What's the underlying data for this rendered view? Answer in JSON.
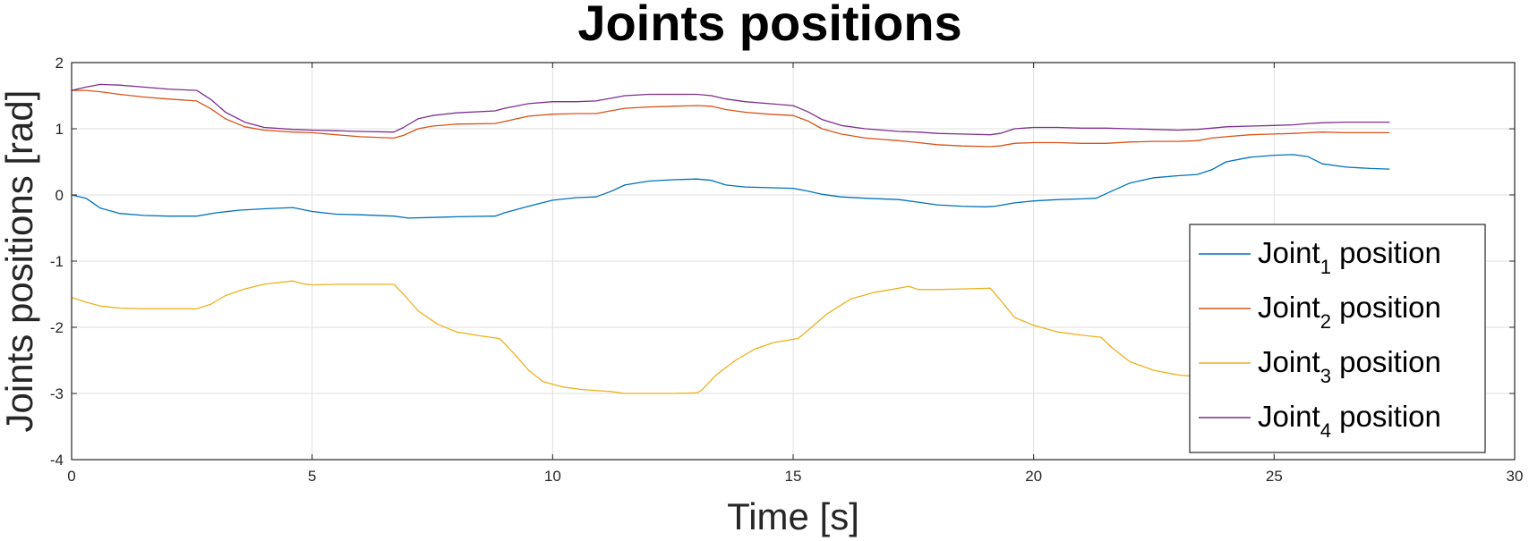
{
  "chart_data": {
    "type": "line",
    "title": "Joints positions",
    "xlabel": "Time [s]",
    "ylabel": "Joints positions [rad]",
    "xlim": [
      0,
      30
    ],
    "ylim": [
      -4,
      2
    ],
    "xticks": [
      0,
      5,
      10,
      15,
      20,
      25,
      30
    ],
    "yticks": [
      -4,
      -3,
      -2,
      -1,
      0,
      1,
      2
    ],
    "grid": true,
    "legend_position": "bottom-right",
    "series": [
      {
        "name": "Joint1 position",
        "label_main": "Joint",
        "label_sub": "1",
        "label_tail": " position",
        "color": "#0072BD",
        "x": [
          0,
          0.3,
          0.6,
          1,
          1.5,
          2,
          2.6,
          3,
          3.5,
          4,
          4.6,
          5,
          5.5,
          6,
          6.7,
          7,
          7.5,
          8,
          8.8,
          9,
          9.5,
          10,
          10.5,
          10.9,
          11.2,
          11.5,
          12,
          12.5,
          13,
          13.3,
          13.6,
          14,
          14.5,
          15,
          15.3,
          15.6,
          16,
          16.5,
          17.2,
          17.6,
          18,
          18.5,
          19,
          19.2,
          19.6,
          20,
          20.5,
          21,
          21.3,
          21.6,
          22,
          22.5,
          23,
          23.4,
          23.7,
          24,
          24.5,
          25,
          25.4,
          25.7,
          26,
          26.5,
          27,
          27.4
        ],
        "y": [
          0,
          -0.05,
          -0.2,
          -0.28,
          -0.31,
          -0.32,
          -0.32,
          -0.27,
          -0.23,
          -0.21,
          -0.19,
          -0.25,
          -0.29,
          -0.3,
          -0.32,
          -0.35,
          -0.34,
          -0.33,
          -0.32,
          -0.27,
          -0.17,
          -0.08,
          -0.04,
          -0.03,
          0.05,
          0.15,
          0.21,
          0.23,
          0.24,
          0.22,
          0.15,
          0.12,
          0.11,
          0.1,
          0.06,
          0.01,
          -0.03,
          -0.05,
          -0.07,
          -0.11,
          -0.15,
          -0.17,
          -0.18,
          -0.17,
          -0.12,
          -0.09,
          -0.07,
          -0.06,
          -0.05,
          0.05,
          0.18,
          0.26,
          0.29,
          0.31,
          0.38,
          0.5,
          0.57,
          0.6,
          0.61,
          0.58,
          0.47,
          0.42,
          0.4,
          0.39
        ]
      },
      {
        "name": "Joint2 position",
        "label_main": "Joint",
        "label_sub": "2",
        "label_tail": " position",
        "color": "#D95319",
        "x": [
          0,
          0.3,
          0.6,
          1,
          1.5,
          2,
          2.6,
          2.9,
          3.2,
          3.6,
          4,
          4.6,
          5,
          5.5,
          6,
          6.7,
          6.9,
          7.2,
          7.5,
          8,
          8.8,
          9,
          9.5,
          10,
          10.5,
          10.9,
          11.2,
          11.5,
          12,
          12.5,
          13,
          13.3,
          13.6,
          14,
          14.5,
          15,
          15.3,
          15.6,
          16,
          16.5,
          17.2,
          17.6,
          18,
          18.5,
          19.1,
          19.3,
          19.6,
          20,
          20.5,
          21,
          21.5,
          22,
          22.5,
          23,
          23.4,
          23.7,
          24,
          24.5,
          25,
          25.4,
          25.7,
          26,
          26.5,
          27,
          27.4
        ],
        "y": [
          1.58,
          1.58,
          1.56,
          1.52,
          1.48,
          1.45,
          1.42,
          1.3,
          1.15,
          1.03,
          0.98,
          0.95,
          0.94,
          0.91,
          0.88,
          0.86,
          0.9,
          1.0,
          1.04,
          1.07,
          1.08,
          1.11,
          1.19,
          1.22,
          1.23,
          1.23,
          1.27,
          1.31,
          1.33,
          1.34,
          1.35,
          1.34,
          1.29,
          1.25,
          1.22,
          1.2,
          1.12,
          1.0,
          0.92,
          0.86,
          0.82,
          0.79,
          0.76,
          0.74,
          0.73,
          0.74,
          0.78,
          0.79,
          0.79,
          0.78,
          0.78,
          0.8,
          0.81,
          0.81,
          0.82,
          0.86,
          0.88,
          0.91,
          0.92,
          0.93,
          0.94,
          0.95,
          0.94,
          0.94,
          0.94
        ]
      },
      {
        "name": "Joint3 position",
        "label_main": "Joint",
        "label_sub": "3",
        "label_tail": " position",
        "color": "#EDB120",
        "x": [
          0,
          0.3,
          0.6,
          1,
          1.5,
          2,
          2.6,
          2.9,
          3.2,
          3.6,
          4,
          4.6,
          4.8,
          5,
          5.5,
          6,
          6.7,
          6.9,
          7.2,
          7.6,
          8,
          8.5,
          8.9,
          9.2,
          9.5,
          9.8,
          10.2,
          10.6,
          11.2,
          11.5,
          12,
          12.5,
          13,
          13.1,
          13.4,
          13.8,
          14.2,
          14.6,
          15.1,
          15.3,
          15.7,
          16.2,
          16.7,
          17.2,
          17.4,
          17.6,
          18,
          18.5,
          19.1,
          19.3,
          19.6,
          20,
          20.5,
          21,
          21.4,
          21.6,
          22,
          22.5,
          23,
          23.5
        ],
        "y": [
          -1.55,
          -1.62,
          -1.68,
          -1.71,
          -1.72,
          -1.72,
          -1.72,
          -1.65,
          -1.52,
          -1.42,
          -1.35,
          -1.3,
          -1.34,
          -1.36,
          -1.35,
          -1.35,
          -1.35,
          -1.5,
          -1.75,
          -1.95,
          -2.07,
          -2.13,
          -2.17,
          -2.4,
          -2.65,
          -2.82,
          -2.9,
          -2.94,
          -2.97,
          -3.0,
          -3.0,
          -3.0,
          -2.99,
          -2.95,
          -2.72,
          -2.5,
          -2.33,
          -2.23,
          -2.17,
          -2.05,
          -1.8,
          -1.57,
          -1.47,
          -1.41,
          -1.38,
          -1.43,
          -1.43,
          -1.42,
          -1.41,
          -1.58,
          -1.85,
          -1.97,
          -2.07,
          -2.12,
          -2.15,
          -2.29,
          -2.52,
          -2.65,
          -2.72,
          -2.75
        ]
      },
      {
        "name": "Joint4 position",
        "label_main": "Joint",
        "label_sub": "4",
        "label_tail": " position",
        "color": "#7E2F8E",
        "x": [
          0,
          0.3,
          0.6,
          1,
          1.5,
          2,
          2.6,
          2.9,
          3.2,
          3.6,
          4,
          4.6,
          5,
          5.5,
          6,
          6.7,
          6.9,
          7.2,
          7.5,
          8,
          8.8,
          9,
          9.5,
          10,
          10.5,
          10.9,
          11.2,
          11.5,
          12,
          12.5,
          13,
          13.3,
          13.6,
          14,
          14.5,
          15,
          15.3,
          15.6,
          16,
          16.5,
          17.2,
          17.6,
          18,
          18.5,
          19.1,
          19.3,
          19.6,
          20,
          20.5,
          21,
          21.5,
          22,
          22.5,
          23,
          23.4,
          23.7,
          24,
          24.5,
          25,
          25.4,
          25.7,
          26,
          26.5,
          27,
          27.4
        ],
        "y": [
          1.58,
          1.63,
          1.67,
          1.66,
          1.63,
          1.6,
          1.58,
          1.44,
          1.25,
          1.1,
          1.02,
          0.99,
          0.98,
          0.97,
          0.96,
          0.95,
          1.02,
          1.15,
          1.2,
          1.24,
          1.27,
          1.31,
          1.38,
          1.41,
          1.41,
          1.42,
          1.46,
          1.5,
          1.52,
          1.52,
          1.52,
          1.5,
          1.45,
          1.41,
          1.38,
          1.35,
          1.26,
          1.14,
          1.05,
          1.0,
          0.96,
          0.95,
          0.93,
          0.92,
          0.91,
          0.93,
          1.0,
          1.02,
          1.02,
          1.01,
          1.01,
          1.0,
          0.99,
          0.98,
          0.99,
          1.01,
          1.03,
          1.04,
          1.05,
          1.06,
          1.08,
          1.09,
          1.1,
          1.1,
          1.1
        ]
      }
    ]
  }
}
